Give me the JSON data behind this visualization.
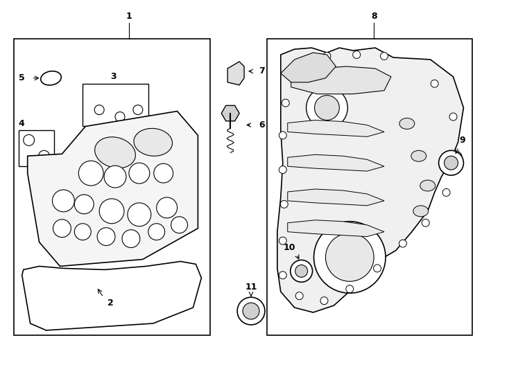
{
  "background_color": "#ffffff",
  "line_color": "#000000",
  "fig_width": 7.34,
  "fig_height": 5.4,
  "dpi": 100
}
